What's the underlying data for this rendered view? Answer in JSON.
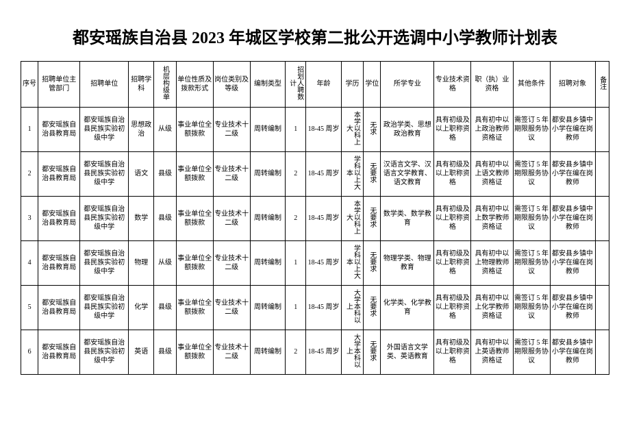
{
  "title": "都安瑶族自治县 2023 年城区学校第二批公开选调中小学教师计划表",
  "headers": {
    "seq": "序号",
    "dept": "招聘单位主管部门",
    "unit": "招聘单位",
    "subject": "招聘学科",
    "level": "机层构级单",
    "nature": "单位性质及拨款形式",
    "post": "岗位类别及等级",
    "comp": "编制类型",
    "count": "招划人聘数计",
    "age": "年龄",
    "edu": "学历",
    "degree": "学位",
    "major": "所学专业",
    "tech": "专业技术资格",
    "cert": "职（执）业资格",
    "other": "其他条件",
    "target": "招聘对象",
    "note": "备注"
  },
  "rows": [
    {
      "seq": "1",
      "dept": "都安瑶族自治县教育局",
      "unit": "都安瑶族自治县民族实验初级中学",
      "subject": "思想政治",
      "level": "从级",
      "nature": "事业单位全额拨款",
      "post": "专业技术十二级",
      "comp": "周转编制",
      "count": "1",
      "age": "18-45 周岁",
      "edu": "本学以科上大",
      "degree": "无求",
      "major": "政治学类、思想政治教育",
      "tech": "具有初级及以上职称资格",
      "cert": "具有初中以上政治教师资格证",
      "other": "需签订 5 年期限服务协议",
      "target": "都安县乡镇中小学在编在岗教师",
      "note": ""
    },
    {
      "seq": "2",
      "dept": "都安瑶族自治县教育局",
      "unit": "都安瑶族自治县民族实验初级中学",
      "subject": "语文",
      "level": "县级",
      "nature": "事业单位全额拨款",
      "post": "专业技术十二级",
      "comp": "周转编制",
      "count": "2",
      "age": "18-45 周岁",
      "edu": "学科以上大本",
      "degree": "无要求",
      "major": "汉语言文学、汉语言文学教育、语文教育",
      "tech": "具有初级及以上职称资格",
      "cert": "具有初中以上语文教师资格证",
      "other": "需签订 5 年期限服务协议",
      "target": "都安县乡镇中小学在编在岗教师",
      "note": ""
    },
    {
      "seq": "3",
      "dept": "都安瑶族自治县教育局",
      "unit": "都安瑶族自治县民族实验初级中学",
      "subject": "数学",
      "level": "县级",
      "nature": "事业单位全额拨款",
      "post": "专业技术十二级",
      "comp": "周转编制",
      "count": "2",
      "age": "18-45 周岁",
      "edu": "本学以科上大",
      "degree": "无要求",
      "major": "数学类、数学教育",
      "tech": "具有初级及以上职称资格",
      "cert": "具有初中以上数学教师资格证",
      "other": "需签订 5 年期限服务协议",
      "target": "都安县乡镇中小学在编在岗教师",
      "note": ""
    },
    {
      "seq": "4",
      "dept": "都安瑶族自治县教育局",
      "unit": "都安瑶族自治县民族实验初级中学",
      "subject": "物理",
      "level": "从级",
      "nature": "事业单位全额拨款",
      "post": "专业技术十二级",
      "comp": "周转编制",
      "count": "1",
      "age": "18-45 周岁",
      "edu": "学科以上大本",
      "degree": "无要求",
      "major": "物理学类、物理教育",
      "tech": "具有初级及以上职称资格",
      "cert": "具有初中以上物理教师资格证",
      "other": "需签订 5 年期限服务协议",
      "target": "都安县乡镇中小学在编在岗教师",
      "note": ""
    },
    {
      "seq": "5",
      "dept": "都安瑶族自治县教育局",
      "unit": "都安瑶族自治县民族实验初级中学",
      "subject": "化学",
      "level": "县级",
      "nature": "事业单位全额拨款",
      "post": "专业技术十二级",
      "comp": "周转编制",
      "count": "1",
      "age": "18-45 周岁",
      "edu": "大学本科以上",
      "degree": "无要求",
      "major": "化学类、化学教育",
      "tech": "具有初级及以上职称资格",
      "cert": "具有初中以上化学教师资格证",
      "other": "需签订 5 年期限服务协议",
      "target": "都安县乡镇中小学在编在岗教师",
      "note": ""
    },
    {
      "seq": "6",
      "dept": "都安瑶族自治县教育局",
      "unit": "都安瑶族自治县民族实验初级中学",
      "subject": "英语",
      "level": "县级",
      "nature": "事业单位全额拨款",
      "post": "专业技术十二级",
      "comp": "周转编制",
      "count": "2",
      "age": "18-45 周岁",
      "edu": "大学本科以上",
      "degree": "无要求",
      "major": "外国语言文学类、英语教育",
      "tech": "具有初级及以上职称资格",
      "cert": "具有初中以上英语教师资格证",
      "other": "需签订 5 年期限服务协议",
      "target": "都安县乡镇中小学在编在岗教师",
      "note": ""
    }
  ]
}
